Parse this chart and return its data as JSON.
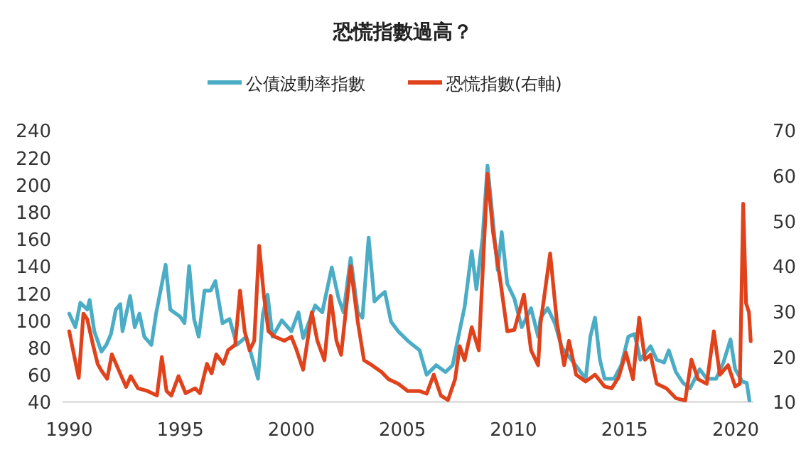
{
  "chart_data": {
    "type": "line",
    "title": "恐慌指數過高？",
    "legend": "top",
    "xlim": [
      1989.7,
      2020.8
    ],
    "xticks": [
      1990,
      1995,
      2000,
      2005,
      2010,
      2015,
      2020
    ],
    "ylim": [
      40,
      240
    ],
    "yticks": [
      40,
      60,
      80,
      100,
      120,
      140,
      160,
      180,
      200,
      220,
      240
    ],
    "y2lim": [
      10,
      70
    ],
    "y2ticks": [
      10,
      20,
      30,
      40,
      50,
      60,
      70
    ],
    "series": [
      {
        "name": "公債波動率指數",
        "color": "#4bacc6",
        "axis": "y",
        "x": [
          1990.0,
          1990.28,
          1990.5,
          1990.81,
          1990.92,
          1991.13,
          1991.45,
          1991.67,
          1991.88,
          1992.1,
          1992.3,
          1992.4,
          1992.74,
          1992.95,
          1993.16,
          1993.38,
          1993.7,
          1993.91,
          1994.34,
          1994.55,
          1994.98,
          1995.19,
          1995.4,
          1995.62,
          1995.83,
          1996.09,
          1996.37,
          1996.58,
          1996.9,
          1997.22,
          1997.54,
          1997.97,
          1998.5,
          1998.72,
          1998.93,
          1999.15,
          1999.57,
          2000.0,
          2000.32,
          2000.53,
          2001.07,
          2001.39,
          2001.82,
          2002.13,
          2002.35,
          2002.67,
          2002.99,
          2003.2,
          2003.48,
          2003.74,
          2003.99,
          2004.21,
          2004.49,
          2004.81,
          2005.24,
          2005.77,
          2006.09,
          2006.52,
          2006.94,
          2007.26,
          2007.48,
          2007.8,
          2008.12,
          2008.33,
          2008.61,
          2008.83,
          2009.04,
          2009.29,
          2009.47,
          2009.72,
          2010.04,
          2010.37,
          2010.79,
          2011.11,
          2011.22,
          2011.54,
          2011.86,
          2012.18,
          2012.61,
          2012.93,
          2013.25,
          2013.46,
          2013.67,
          2013.89,
          2014.1,
          2014.53,
          2014.85,
          2015.17,
          2015.45,
          2015.71,
          2016.17,
          2016.45,
          2016.78,
          2016.99,
          2017.31,
          2017.63,
          2017.95,
          2018.38,
          2018.7,
          2019.12,
          2019.45,
          2019.77,
          2019.98,
          2020.3,
          2020.5,
          2020.62
        ],
        "values": [
          105,
          95,
          113,
          108,
          115,
          92,
          77,
          82,
          90,
          108,
          112,
          92,
          118,
          95,
          105,
          88,
          82,
          105,
          141,
          108,
          103,
          98,
          140,
          101,
          88,
          122,
          122,
          129,
          98,
          101,
          82,
          88,
          57,
          105,
          119,
          88,
          100,
          92,
          106,
          87,
          111,
          106,
          139,
          116,
          106,
          146,
          106,
          102,
          161,
          114,
          118,
          121,
          99,
          92,
          85,
          78,
          60,
          67,
          62,
          67,
          85,
          110,
          151,
          123,
          161,
          214,
          179,
          137,
          165,
          127,
          116,
          95,
          109,
          88,
          102,
          109,
          98,
          80,
          71,
          64,
          57,
          88,
          102,
          71,
          57,
          57,
          67,
          88,
          90,
          71,
          81,
          71,
          69,
          78,
          62,
          54,
          50,
          64,
          57,
          57,
          69,
          86,
          64,
          55,
          54,
          41
        ]
      },
      {
        "name": "恐慌指數(右軸)",
        "color": "#e0421b",
        "axis": "y2",
        "x": [
          1990.0,
          1990.21,
          1990.43,
          1990.64,
          1990.81,
          1991.07,
          1991.28,
          1991.45,
          1991.71,
          1991.92,
          1992.24,
          1992.56,
          1992.77,
          1993.09,
          1993.52,
          1993.95,
          1994.17,
          1994.38,
          1994.6,
          1994.92,
          1995.24,
          1995.67,
          1995.88,
          1996.2,
          1996.41,
          1996.62,
          1996.94,
          1997.15,
          1997.47,
          1997.69,
          1997.9,
          1998.12,
          1998.33,
          1998.55,
          1998.76,
          1998.97,
          1999.25,
          1999.68,
          2000.0,
          2000.21,
          2000.53,
          2000.92,
          2001.17,
          2001.49,
          2001.77,
          2002.03,
          2002.24,
          2002.67,
          2002.99,
          2003.27,
          2003.63,
          2004.06,
          2004.38,
          2004.81,
          2005.24,
          2005.77,
          2006.09,
          2006.41,
          2006.73,
          2007.05,
          2007.37,
          2007.58,
          2007.8,
          2008.12,
          2008.44,
          2008.83,
          2009.08,
          2009.4,
          2009.72,
          2010.04,
          2010.47,
          2010.79,
          2011.11,
          2011.22,
          2011.65,
          2011.96,
          2012.28,
          2012.5,
          2012.82,
          2013.25,
          2013.67,
          2014.1,
          2014.42,
          2014.74,
          2015.06,
          2015.38,
          2015.66,
          2015.92,
          2016.17,
          2016.45,
          2016.88,
          2017.31,
          2017.73,
          2018.01,
          2018.31,
          2018.7,
          2019.02,
          2019.29,
          2019.66,
          2019.98,
          2020.19,
          2020.34,
          2020.47,
          2020.6,
          2020.68
        ],
        "values": [
          25.6,
          20.5,
          15.3,
          29.5,
          28.3,
          22.6,
          18.4,
          16.9,
          15.1,
          20.5,
          16.9,
          13.3,
          15.7,
          13,
          12.4,
          11.4,
          19.9,
          12.4,
          11.4,
          15.7,
          11.9,
          13,
          11.9,
          18.4,
          16.3,
          20.5,
          18.4,
          21.4,
          22.6,
          34.6,
          25.6,
          21.4,
          23.5,
          44.5,
          33.7,
          25.6,
          24.4,
          23.5,
          24.4,
          21.8,
          17.1,
          29.8,
          23.5,
          19.2,
          33.4,
          23.5,
          20.4,
          40,
          27.7,
          19.2,
          18.1,
          16.6,
          15,
          14,
          12.4,
          12.4,
          11.8,
          16,
          11.4,
          10.4,
          15,
          22.3,
          19.2,
          26.5,
          21.4,
          60.4,
          47.5,
          37,
          25.6,
          25.9,
          33.7,
          21.4,
          18.1,
          27.4,
          42.8,
          27.4,
          18.1,
          23.5,
          16,
          14.5,
          16,
          13.4,
          13,
          15.5,
          20.9,
          15,
          28.6,
          19.3,
          20.4,
          14,
          13,
          10.8,
          10.3,
          19.3,
          15,
          14,
          25.6,
          16,
          18.1,
          13.4,
          14,
          53.8,
          31.8,
          29.8,
          23.4
        ]
      }
    ]
  }
}
